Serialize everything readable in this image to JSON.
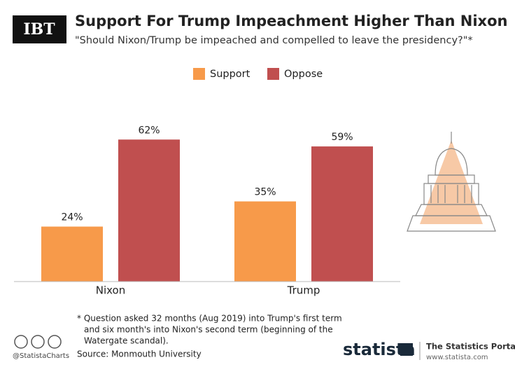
{
  "chart_data": {
    "type": "bar",
    "title": "Support For Trump Impeachment Higher Than Nixon",
    "subtitle": "\"Should Nixon/Trump be impeached and compelled to leave the presidency?\"*",
    "categories": [
      "Nixon",
      "Trump"
    ],
    "series": [
      {
        "name": "Support",
        "color": "#f79a4a",
        "values": [
          24,
          35
        ],
        "value_labels": [
          "24%",
          "35%"
        ]
      },
      {
        "name": "Oppose",
        "color": "#c04f4f",
        "values": [
          62,
          59
        ],
        "value_labels": [
          "62%",
          "59%"
        ]
      }
    ],
    "ylim": [
      0,
      100
    ],
    "legend": "top",
    "footnote": [
      "* Question asked 32 months (Aug 2019) into Trump's first term",
      "and six month's into Nixon's second term (beginning of the",
      "Watergate scandal)."
    ],
    "source": "Source: Monmouth University"
  },
  "branding": {
    "logo": "IBT",
    "handle": "@StatistaCharts",
    "statista": "statista",
    "portal": "The Statistics Portal",
    "url": "www.statista.com"
  }
}
